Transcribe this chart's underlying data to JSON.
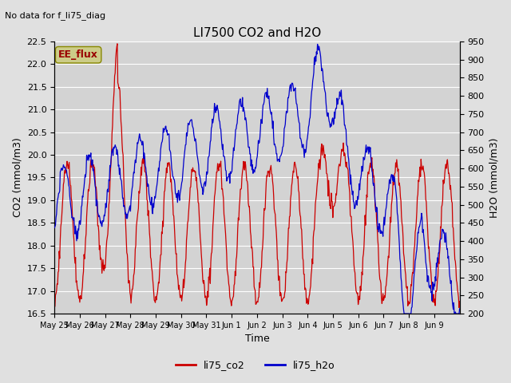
{
  "title": "LI7500 CO2 and H2O",
  "top_left_text": "No data for f_li75_diag",
  "xlabel": "Time",
  "ylabel_left": "CO2 (mmol/m3)",
  "ylabel_right": "H2O (mmol/m3)",
  "ylim_left": [
    16.5,
    22.5
  ],
  "ylim_right": [
    200,
    950
  ],
  "background_color": "#e0e0e0",
  "plot_bg_color": "#d3d3d3",
  "grid_color": "#ffffff",
  "co2_color": "#cc0000",
  "h2o_color": "#0000cc",
  "legend_items": [
    "li75_co2",
    "li75_h2o"
  ],
  "ee_flux_box_color": "#cccc88",
  "ee_flux_text_color": "#990000",
  "x_tick_labels": [
    "May 25",
    "May 26",
    "May 27",
    "May 28",
    "May 29",
    "May 30",
    "May 31",
    "Jun 1",
    "Jun 2",
    "Jun 3",
    "Jun 4",
    "Jun 5",
    "Jun 6",
    "Jun 7",
    "Jun 8",
    "Jun 9"
  ],
  "y_left_ticks": [
    16.5,
    17.0,
    17.5,
    18.0,
    18.5,
    19.0,
    19.5,
    20.0,
    20.5,
    21.0,
    21.5,
    22.0,
    22.5
  ],
  "y_right_ticks": [
    200,
    250,
    300,
    350,
    400,
    450,
    500,
    550,
    600,
    650,
    700,
    750,
    800,
    850,
    900,
    950
  ]
}
